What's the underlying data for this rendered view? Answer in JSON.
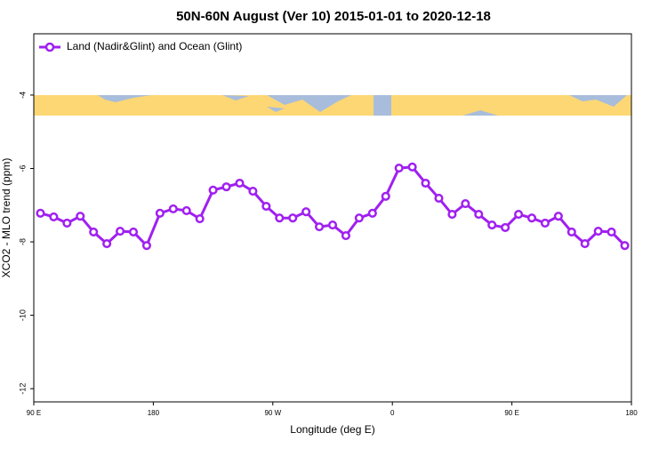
{
  "chart_data": {
    "type": "line",
    "title": "50N-60N August (Ver 10)   2015-01-01 to 2020-12-18",
    "xlabel": "Longitude (deg E)",
    "ylabel": "XCO2 - MLO trend (ppm)",
    "x": [
      95,
      105,
      115,
      125,
      135,
      145,
      155,
      165,
      175,
      185,
      195,
      205,
      215,
      225,
      235,
      245,
      255,
      265,
      275,
      285,
      295,
      305,
      315,
      325,
      335,
      345,
      355,
      365,
      375,
      385,
      395,
      405,
      415,
      425,
      435,
      445,
      455,
      465,
      475,
      485,
      495,
      505,
      515,
      525,
      535
    ],
    "series": [
      {
        "name": "Land (Nadir&Glint) and Ocean (Glint)",
        "color": "#a020f0",
        "values": [
          -7.22,
          -7.32,
          -7.49,
          -7.3,
          -7.73,
          -8.05,
          -7.71,
          -7.73,
          -8.1,
          -7.22,
          -7.1,
          -7.15,
          -7.37,
          -6.59,
          -6.5,
          -6.4,
          -6.62,
          -7.03,
          -7.35,
          -7.35,
          -7.18,
          -7.59,
          -7.54,
          -7.83,
          -7.35,
          -7.22,
          -6.76,
          -5.99,
          -5.96,
          -6.4,
          -6.81,
          -7.25,
          -6.96,
          -7.25,
          -7.54,
          -7.61,
          -7.25,
          -7.35,
          -7.49,
          -7.3,
          -7.73,
          -8.05,
          -7.71,
          -7.73,
          -8.1
        ]
      }
    ],
    "xlim": [
      90,
      540
    ],
    "xticks": [
      {
        "value": 90,
        "label": "90 E"
      },
      180,
      {
        "value": 270,
        "label": "90 W"
      },
      {
        "value": 360,
        "label": "0"
      },
      {
        "value": 450,
        "label": "90 E"
      },
      {
        "value": 540,
        "label": "180"
      }
    ],
    "ylim": [
      -12.36,
      -2.33
    ],
    "yticks": [
      -4,
      -6,
      -8,
      -10,
      -12
    ],
    "legend": "top-left"
  }
}
